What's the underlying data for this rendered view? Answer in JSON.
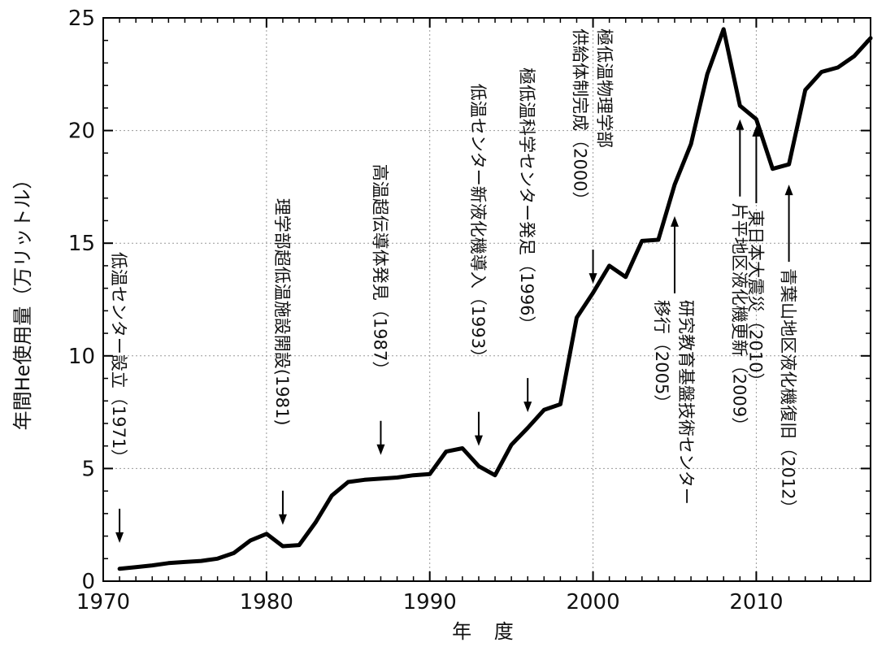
{
  "chart_data": {
    "type": "line",
    "xlabel": "年 度",
    "ylabel": "年間He使用量（万リットル）",
    "xlim": [
      1970,
      2017
    ],
    "ylim": [
      0,
      25
    ],
    "x_ticks": [
      1970,
      1980,
      1990,
      2000,
      2010
    ],
    "y_ticks": [
      0,
      5,
      10,
      15,
      20,
      25
    ],
    "grid": true,
    "series": [
      {
        "x": [
          1971,
          1972,
          1973,
          1974,
          1975,
          1976,
          1977,
          1978,
          1979,
          1980,
          1981,
          1982,
          1983,
          1984,
          1985,
          1986,
          1987,
          1988,
          1989,
          1990,
          1991,
          1992,
          1993,
          1994,
          1995,
          1996,
          1997,
          1998,
          1999,
          2000,
          2001,
          2002,
          2003,
          2004,
          2005,
          2006,
          2007,
          2008,
          2009,
          2010,
          2011,
          2012,
          2013,
          2014,
          2015,
          2016,
          2017
        ],
        "values": [
          0.55,
          0.62,
          0.7,
          0.8,
          0.85,
          0.9,
          1.0,
          1.25,
          1.8,
          2.1,
          1.55,
          1.6,
          2.6,
          3.8,
          4.4,
          4.5,
          4.55,
          4.6,
          4.7,
          4.75,
          5.75,
          5.9,
          5.1,
          4.7,
          6.05,
          6.8,
          7.6,
          7.85,
          11.7,
          12.8,
          14.0,
          13.5,
          15.1,
          15.15,
          17.6,
          19.4,
          22.5,
          24.5,
          21.1,
          20.5,
          18.3,
          18.5,
          21.8,
          22.6,
          22.8,
          23.3,
          24.1
        ]
      }
    ],
    "annotations": [
      {
        "text": "低温センター設立（1971）",
        "x": 1971,
        "arrow_dir": "down",
        "arrow_to_y": 1.7
      },
      {
        "text": "理学部超低温施設開設(1981)",
        "x": 1981,
        "arrow_dir": "down",
        "arrow_to_y": 2.5
      },
      {
        "text": "高温超伝導体発見（1987）",
        "x": 1987,
        "arrow_dir": "down",
        "arrow_to_y": 5.6
      },
      {
        "text": "低温センター新液化機導入（1993）",
        "x": 1993,
        "arrow_dir": "down",
        "arrow_to_y": 6.0
      },
      {
        "text": "極低温科学センター発足（1996）",
        "x": 1996,
        "arrow_dir": "down",
        "arrow_to_y": 7.5
      },
      {
        "text": [
          "極低温物理学部",
          "供給体制完成（2000）"
        ],
        "x": 2000,
        "arrow_dir": "down",
        "arrow_to_y": 13.2
      },
      {
        "text": [
          "研究教育基盤技術センター",
          "移行（2005）"
        ],
        "x": 2005,
        "arrow_dir": "up",
        "arrow_to_y": 16.2
      },
      {
        "text": "片平地区液化機更新（2009）",
        "x": 2009,
        "arrow_dir": "up",
        "arrow_to_y": 20.5
      },
      {
        "text": "東日本大震災（2010）",
        "x": 2010,
        "arrow_dir": "up",
        "arrow_to_y": 20.2
      },
      {
        "text": "青葉山地区液化機復旧（2012）",
        "x": 2012,
        "arrow_dir": "up",
        "arrow_to_y": 17.6
      }
    ]
  }
}
